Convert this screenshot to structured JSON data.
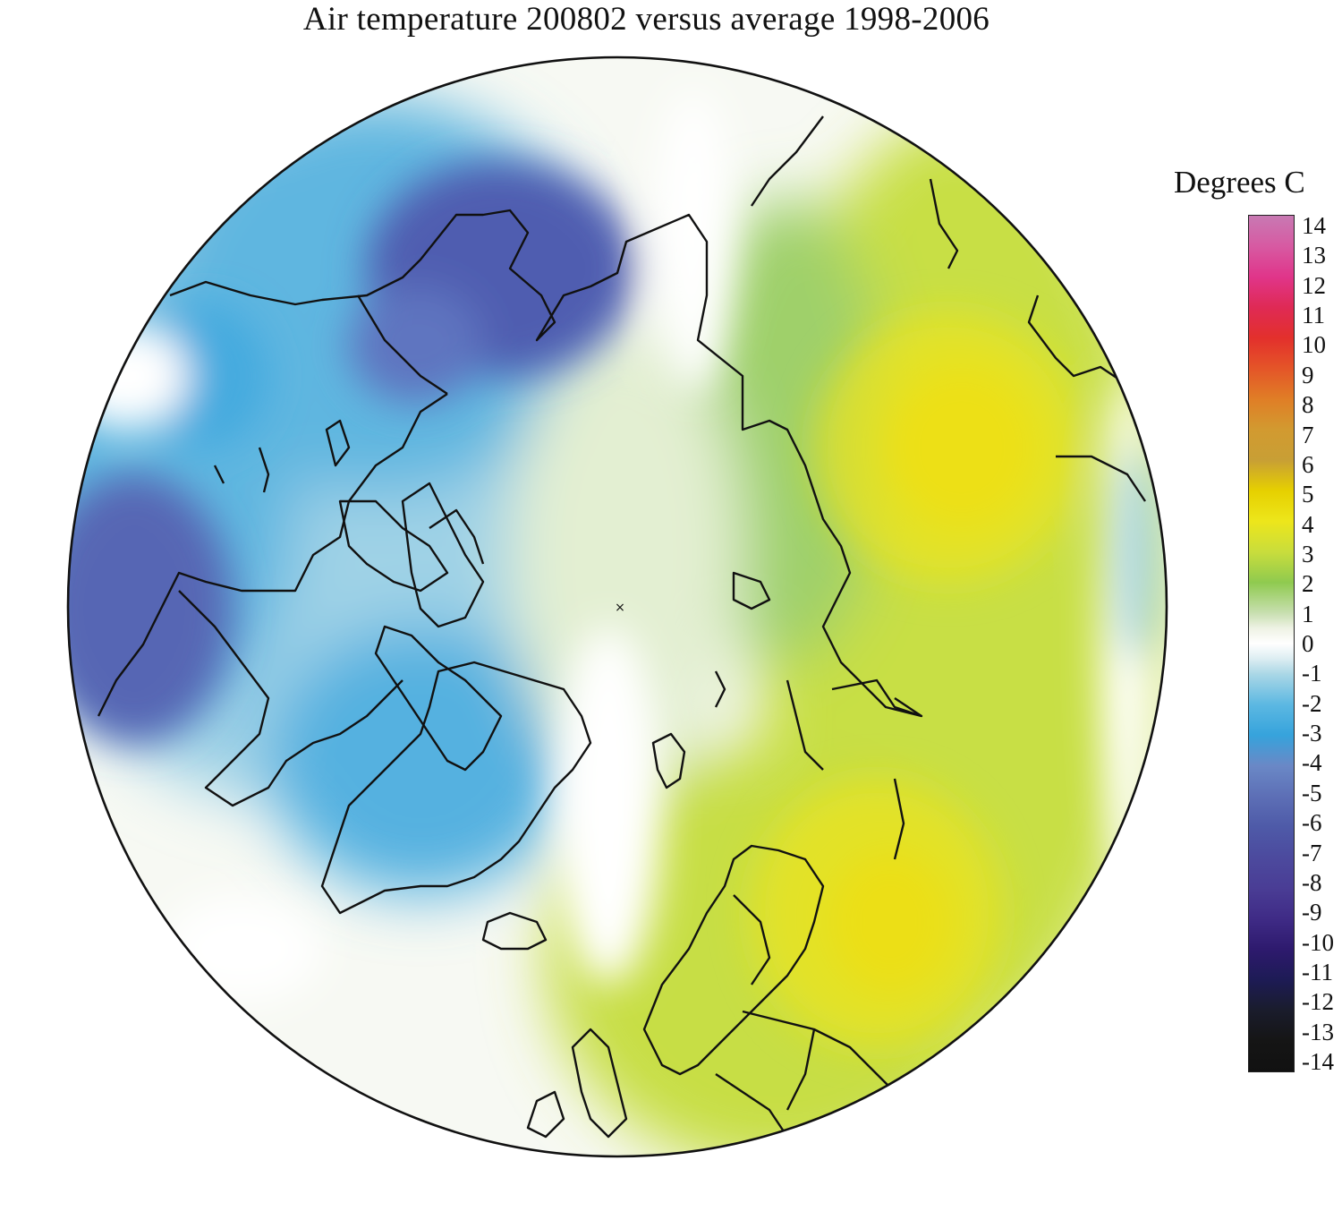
{
  "title": "Air temperature 200802 versus average 1998-2006",
  "legend": {
    "title": "Degrees C",
    "ticks": [
      "14",
      "13",
      "12",
      "11",
      "10",
      "9",
      "8",
      "7",
      "6",
      "5",
      "4",
      "3",
      "2",
      "1",
      "0",
      "-1",
      "-2",
      "-3",
      "-4",
      "-5",
      "-6",
      "-7",
      "-8",
      "-9",
      "-10",
      "-11",
      "-12",
      "-13",
      "-14"
    ],
    "color_stops": [
      {
        "value": 14,
        "color": "#c879b3"
      },
      {
        "value": 13,
        "color": "#d75aa2"
      },
      {
        "value": 12,
        "color": "#e0358a"
      },
      {
        "value": 11,
        "color": "#df2a55"
      },
      {
        "value": 10,
        "color": "#e3302c"
      },
      {
        "value": 9,
        "color": "#e45528"
      },
      {
        "value": 8,
        "color": "#e07e26"
      },
      {
        "value": 7,
        "color": "#d29a30"
      },
      {
        "value": 6,
        "color": "#c89f35"
      },
      {
        "value": 5,
        "color": "#e6d000"
      },
      {
        "value": 4,
        "color": "#ede61b"
      },
      {
        "value": 3,
        "color": "#c9dd3c"
      },
      {
        "value": 2,
        "color": "#8fca4f"
      },
      {
        "value": 1,
        "color": "#c8dfb0"
      },
      {
        "value": 0.5,
        "color": "#eef2e4"
      },
      {
        "value": 0,
        "color": "#ffffff"
      },
      {
        "value": -0.5,
        "color": "#dcedf2"
      },
      {
        "value": -1,
        "color": "#aad7e6"
      },
      {
        "value": -2,
        "color": "#5cb8e2"
      },
      {
        "value": -3,
        "color": "#36a3dc"
      },
      {
        "value": -4,
        "color": "#6a88c6"
      },
      {
        "value": -5,
        "color": "#5d6fb6"
      },
      {
        "value": -6,
        "color": "#4e5aa8"
      },
      {
        "value": -7,
        "color": "#4c4a9e"
      },
      {
        "value": -8,
        "color": "#4a3d95"
      },
      {
        "value": -9,
        "color": "#3f2b86"
      },
      {
        "value": -10,
        "color": "#2e1a6e"
      },
      {
        "value": -11,
        "color": "#1d1b55"
      },
      {
        "value": -12,
        "color": "#1a1c2c"
      },
      {
        "value": -13,
        "color": "#151515"
      },
      {
        "value": -14,
        "color": "#111111"
      }
    ]
  },
  "map": {
    "projection": "polar stereographic, north pole centered",
    "colors": {
      "coast": "#111111",
      "disk_edge": "#111111",
      "ocean_base": "#ffffff"
    }
  }
}
